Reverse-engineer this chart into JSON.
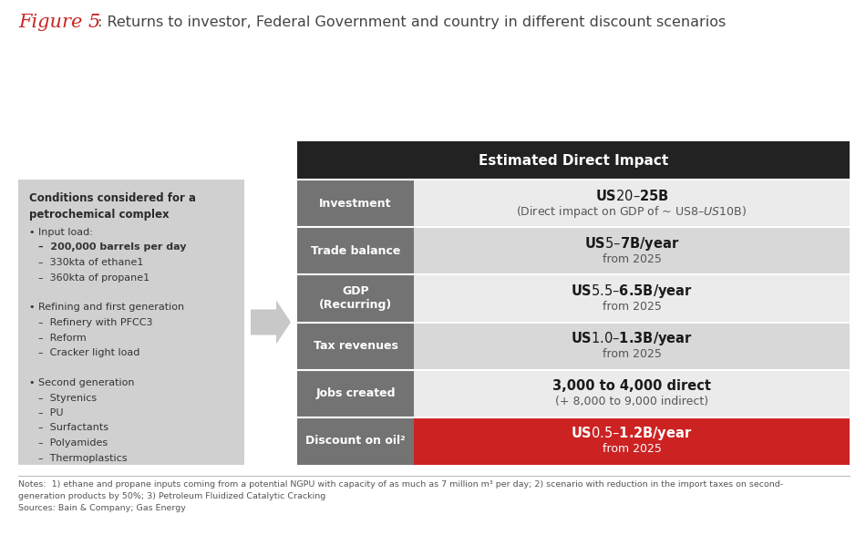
{
  "title_fig": "Figure 5",
  "title_main": ": Returns to investor, Federal Government and country in different discount scenarios",
  "bg_color": "#ffffff",
  "left_box_color": "#d0d0d0",
  "header_box_color": "#222222",
  "row_label_color": "#737373",
  "last_row_color": "#cc2222",
  "header_text": "Estimated Direct Impact",
  "rows": [
    {
      "label": "Investment",
      "value_bold": "US$20–$25B",
      "value_normal": "(Direct impact on GDP of ~ US$8–US$10B)",
      "value_bg": "#ebebeb",
      "value_bold_color": "#1a1a1a",
      "value_normal_color": "#555555"
    },
    {
      "label": "Trade balance",
      "value_bold": "US$5–$7B/year",
      "value_normal": "from 2025",
      "value_bg": "#d8d8d8",
      "value_bold_color": "#1a1a1a",
      "value_normal_color": "#555555"
    },
    {
      "label": "GDP\n(Recurring)",
      "value_bold": "US$5.5–$6.5B/year",
      "value_normal": "from 2025",
      "value_bg": "#ebebeb",
      "value_bold_color": "#1a1a1a",
      "value_normal_color": "#555555"
    },
    {
      "label": "Tax revenues",
      "value_bold": "US$1.0–$1.3B/year",
      "value_normal": "from 2025",
      "value_bg": "#d8d8d8",
      "value_bold_color": "#1a1a1a",
      "value_normal_color": "#555555"
    },
    {
      "label": "Jobs created",
      "value_bold": "3,000 to 4,000 direct",
      "value_normal": "(+ 8,000 to 9,000 indirect)",
      "value_bg": "#ebebeb",
      "value_bold_color": "#1a1a1a",
      "value_normal_color": "#555555"
    },
    {
      "label": "Discount on oil²",
      "value_bold": "US$0.5–$1.2B/year",
      "value_normal": "from 2025",
      "value_bg": "#cc2222",
      "value_bold_color": "#ffffff",
      "value_normal_color": "#ffffff"
    }
  ],
  "left_title_bold": "Conditions considered for a\npetrochemical complex",
  "left_content": [
    {
      "text": "• Input load:",
      "bold": false,
      "indent": 0
    },
    {
      "text": "–  200,000 barrels per day",
      "bold": true,
      "indent": 1
    },
    {
      "text": "–  330kta of ethane1",
      "bold": false,
      "indent": 1
    },
    {
      "text": "–  360kta of propane1",
      "bold": false,
      "indent": 1
    },
    {
      "text": "",
      "bold": false,
      "indent": 0
    },
    {
      "text": "• Refining and first generation",
      "bold": false,
      "indent": 0
    },
    {
      "text": "–  Refinery with PFCC3",
      "bold": false,
      "indent": 1
    },
    {
      "text": "–  Reform",
      "bold": false,
      "indent": 1
    },
    {
      "text": "–  Cracker light load",
      "bold": false,
      "indent": 1
    },
    {
      "text": "",
      "bold": false,
      "indent": 0
    },
    {
      "text": "• Second generation",
      "bold": false,
      "indent": 0
    },
    {
      "text": "–  Styrenics",
      "bold": false,
      "indent": 1
    },
    {
      "text": "–  PU",
      "bold": false,
      "indent": 1
    },
    {
      "text": "–  Surfactants",
      "bold": false,
      "indent": 1
    },
    {
      "text": "–  Polyamides",
      "bold": false,
      "indent": 1
    },
    {
      "text": "–  Thermoplastics",
      "bold": false,
      "indent": 1
    }
  ],
  "notes_line1": "Notes:  1) ethane and propane inputs coming from a potential NGPU with capacity of as much as 7 million m³ per day; 2) scenario with reduction in the import taxes on second-",
  "notes_line2": "generation products by 50%; 3) Petroleum Fluidized Catalytic Cracking",
  "notes_line3": "Sources: Bain & Company; Gas Energy"
}
